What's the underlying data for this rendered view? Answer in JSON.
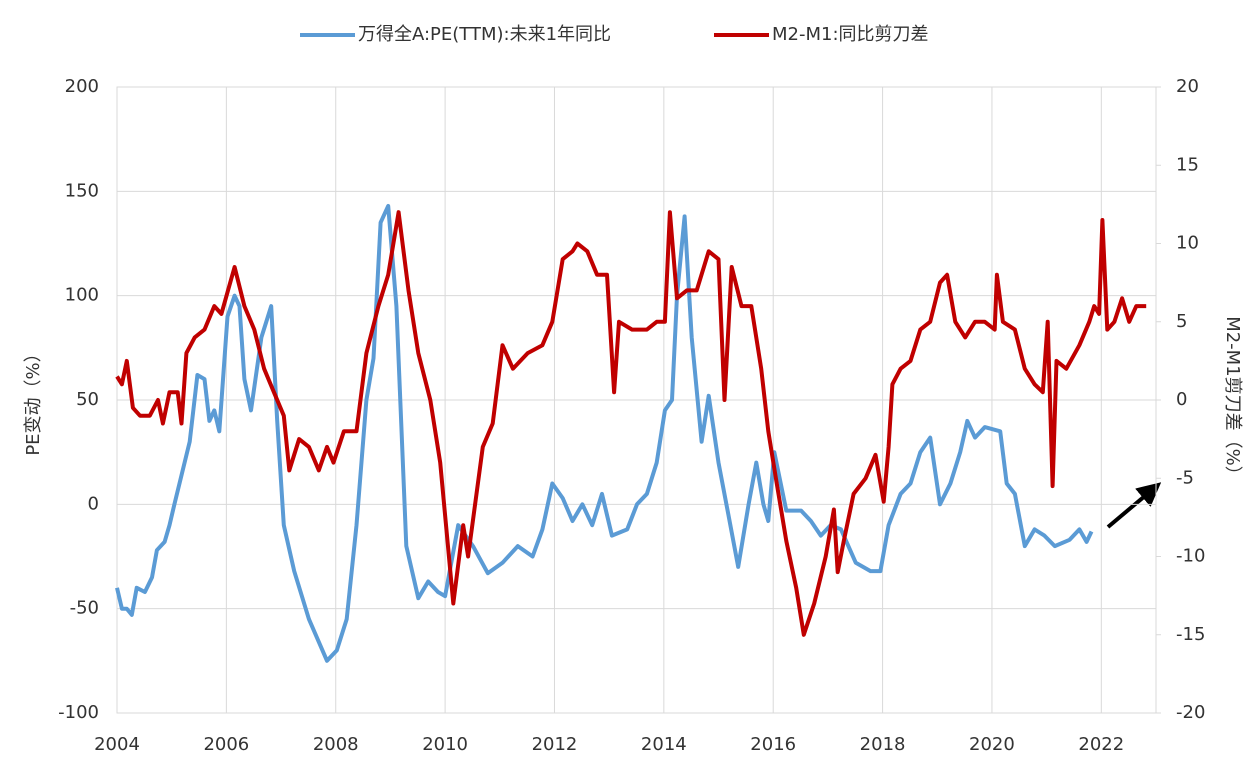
{
  "chart_data": {
    "type": "line",
    "y_label": "PE变动（%）",
    "y2_label": "M2-M1剪刀差（%）",
    "xlim": [
      2004,
      2023
    ],
    "xticks": [
      2004,
      2006,
      2008,
      2010,
      2012,
      2014,
      2016,
      2018,
      2020,
      2022
    ],
    "ylim": [
      -100,
      200
    ],
    "yticks": [
      -100,
      -50,
      0,
      50,
      100,
      150,
      200
    ],
    "y2lim": [
      -20,
      20
    ],
    "y2ticks": [
      -20,
      -15,
      -10,
      -5,
      0,
      5,
      10,
      15,
      20
    ],
    "grid": true,
    "legend": "top",
    "series": [
      {
        "name": "万得全A:PE(TTM):未来1年同比",
        "color": "#5b9bd5",
        "x": [
          2004,
          2004.09,
          2004.18,
          2004.27,
          2004.36,
          2004.51,
          2004.64,
          2004.73,
          2004.87,
          2004.96,
          2005.05,
          2005.33,
          2005.47,
          2005.6,
          2005.69,
          2005.78,
          2005.87,
          2006.02,
          2006.15,
          2006.24,
          2006.33,
          2006.45,
          2006.64,
          2006.82,
          2006.93,
          2007.05,
          2007.24,
          2007.51,
          2007.84,
          2008.02,
          2008.2,
          2008.38,
          2008.56,
          2008.69,
          2008.82,
          2008.96,
          2009.11,
          2009.29,
          2009.51,
          2009.69,
          2009.87,
          2010.0,
          2010.24,
          2010.51,
          2010.78,
          2011.05,
          2011.33,
          2011.6,
          2011.78,
          2011.96,
          2012.15,
          2012.33,
          2012.51,
          2012.69,
          2012.87,
          2013.05,
          2013.33,
          2013.51,
          2013.69,
          2013.87,
          2014.02,
          2014.15,
          2014.24,
          2014.38,
          2014.51,
          2014.69,
          2014.82,
          2015.0,
          2015.18,
          2015.36,
          2015.55,
          2015.69,
          2015.82,
          2015.91,
          2016.02,
          2016.24,
          2016.51,
          2016.69,
          2016.87,
          2017.05,
          2017.24,
          2017.51,
          2017.78,
          2017.96,
          2018.11,
          2018.33,
          2018.51,
          2018.69,
          2018.87,
          2019.05,
          2019.24,
          2019.42,
          2019.55,
          2019.69,
          2019.87,
          2020.15,
          2020.27,
          2020.42,
          2020.6,
          2020.78,
          2020.96,
          2021.15,
          2021.42,
          2021.6,
          2021.73,
          2021.82
        ],
        "values": [
          -40,
          -50,
          -50,
          -53,
          -40,
          -42,
          -35,
          -22,
          -18,
          -10,
          0,
          30,
          62,
          60,
          40,
          45,
          35,
          90,
          100,
          95,
          60,
          45,
          80,
          95,
          40,
          -10,
          -32,
          -55,
          -75,
          -70,
          -55,
          -10,
          50,
          70,
          135,
          143,
          95,
          -20,
          -45,
          -37,
          -42,
          -44,
          -10,
          -20,
          -33,
          -28,
          -20,
          -25,
          -12,
          10,
          3,
          -8,
          0,
          -10,
          5,
          -15,
          -12,
          0,
          5,
          20,
          45,
          50,
          100,
          138,
          80,
          30,
          52,
          20,
          -5,
          -30,
          0,
          20,
          0,
          -8,
          25,
          -3,
          -3,
          -8,
          -15,
          -10,
          -12,
          -28,
          -32,
          -32,
          -10,
          5,
          10,
          25,
          32,
          0,
          10,
          25,
          40,
          32,
          37,
          35,
          10,
          5,
          -20,
          -12,
          -15,
          -20,
          -17,
          -12,
          -18,
          -13
        ]
      },
      {
        "name": "M2-M1:同比剪刀差",
        "color": "#c00000",
        "axis": "y2",
        "x": [
          2004,
          2004.09,
          2004.18,
          2004.29,
          2004.42,
          2004.6,
          2004.75,
          2004.84,
          2004.96,
          2005.11,
          2005.18,
          2005.27,
          2005.42,
          2005.6,
          2005.78,
          2005.91,
          2006.15,
          2006.33,
          2006.51,
          2006.69,
          2006.87,
          2007.05,
          2007.15,
          2007.33,
          2007.51,
          2007.69,
          2007.84,
          2007.96,
          2008.15,
          2008.38,
          2008.56,
          2008.78,
          2008.96,
          2009.15,
          2009.33,
          2009.51,
          2009.73,
          2009.91,
          2010.15,
          2010.33,
          2010.42,
          2010.69,
          2010.87,
          2011.05,
          2011.24,
          2011.51,
          2011.78,
          2011.96,
          2012.15,
          2012.33,
          2012.42,
          2012.6,
          2012.78,
          2012.96,
          2013.09,
          2013.18,
          2013.42,
          2013.69,
          2013.87,
          2014.02,
          2014.11,
          2014.24,
          2014.42,
          2014.6,
          2014.82,
          2015.0,
          2015.11,
          2015.24,
          2015.42,
          2015.6,
          2015.78,
          2015.91,
          2016.05,
          2016.24,
          2016.42,
          2016.56,
          2016.75,
          2016.96,
          2017.11,
          2017.18,
          2017.29,
          2017.47,
          2017.69,
          2017.87,
          2018.02,
          2018.11,
          2018.18,
          2018.33,
          2018.51,
          2018.69,
          2018.87,
          2019.05,
          2019.18,
          2019.33,
          2019.51,
          2019.69,
          2019.87,
          2020.05,
          2020.09,
          2020.2,
          2020.42,
          2020.6,
          2020.78,
          2020.93,
          2021.02,
          2021.11,
          2021.18,
          2021.36,
          2021.6,
          2021.78,
          2021.87,
          2021.96,
          2022.02,
          2022.11,
          2022.24,
          2022.38,
          2022.51,
          2022.64,
          2022.82
        ],
        "values": [
          1.5,
          1,
          2.5,
          -0.5,
          -1,
          -1,
          0,
          -1.5,
          0.5,
          0.5,
          -1.5,
          3,
          4,
          4.5,
          6,
          5.5,
          8.5,
          6,
          4.5,
          2,
          0.5,
          -1,
          -4.5,
          -2.5,
          -3,
          -4.5,
          -3,
          -4,
          -2,
          -2,
          3,
          6,
          8,
          12,
          7,
          3,
          0,
          -4,
          -13,
          -8,
          -10,
          -3,
          -1.5,
          3.5,
          2,
          3,
          3.5,
          5,
          9,
          9.5,
          10,
          9.5,
          8,
          8,
          0.5,
          5,
          4.5,
          4.5,
          5,
          5,
          12,
          6.5,
          7,
          7,
          9.5,
          9,
          0,
          8.5,
          6,
          6,
          2,
          -2,
          -5,
          -9,
          -12,
          -15,
          -13,
          -10,
          -7,
          -11,
          -9,
          -6,
          -5,
          -3.5,
          -6.5,
          -3,
          1,
          2,
          2.5,
          4.5,
          5,
          7.5,
          8,
          5,
          4,
          5,
          5,
          4.5,
          8,
          5,
          4.5,
          2,
          1,
          0.5,
          5,
          -5.5,
          2.5,
          2,
          3.5,
          5,
          6,
          5.5,
          11.5,
          4.5,
          5,
          6.5,
          5,
          6,
          6
        ]
      }
    ]
  }
}
